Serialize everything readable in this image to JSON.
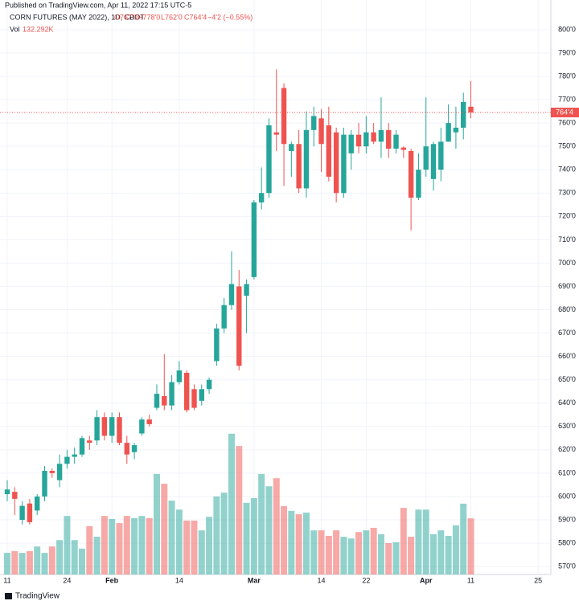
{
  "header": {
    "published": "Published on TradingView.com, Apr 11, 2022 17:15 UTC-5",
    "footer": "TradingView"
  },
  "chart_data": {
    "type": "candlestick",
    "title": "CORN FUTURES (MAY 2022), 1D, CBOT",
    "legend_values": [
      "O767'0",
      "H778'0",
      "L762'0",
      "C764'4",
      "−4'2 (−0.55%)"
    ],
    "volume_title": "Vol",
    "volume_label": "132.292K",
    "up_color": "#26a69a",
    "down_color": "#ef5350",
    "last_price": {
      "value": 764.5,
      "label": "764'4"
    },
    "xlim": [
      -0.97,
      72.7
    ],
    "xticks": [
      {
        "value": 0,
        "label": "11"
      },
      {
        "value": 8,
        "label": "24"
      },
      {
        "value": 14,
        "label": "Feb"
      },
      {
        "value": 23,
        "label": "14"
      },
      {
        "value": 33,
        "label": "Mar"
      },
      {
        "value": 42,
        "label": "14"
      },
      {
        "value": 48,
        "label": "22"
      },
      {
        "value": 56,
        "label": "Apr"
      },
      {
        "value": 62,
        "label": "11"
      },
      {
        "value": 71,
        "label": "25"
      }
    ],
    "ylim": [
      566.6,
      812.7
    ],
    "yticks": [
      {
        "value": 570,
        "label": "570'0"
      },
      {
        "value": 580,
        "label": "580'0"
      },
      {
        "value": 590,
        "label": "590'0"
      },
      {
        "value": 600,
        "label": "600'0"
      },
      {
        "value": 610,
        "label": "610'0"
      },
      {
        "value": 620,
        "label": "620'0"
      },
      {
        "value": 630,
        "label": "630'0"
      },
      {
        "value": 640,
        "label": "640'0"
      },
      {
        "value": 650,
        "label": "650'0"
      },
      {
        "value": 660,
        "label": "660'0"
      },
      {
        "value": 670,
        "label": "670'0"
      },
      {
        "value": 680,
        "label": "680'0"
      },
      {
        "value": 690,
        "label": "690'0"
      },
      {
        "value": 700,
        "label": "700'0"
      },
      {
        "value": 710,
        "label": "710'0"
      },
      {
        "value": 720,
        "label": "720'0"
      },
      {
        "value": 730,
        "label": "730'0"
      },
      {
        "value": 740,
        "label": "740'0"
      },
      {
        "value": 750,
        "label": "750'0"
      },
      {
        "value": 760,
        "label": "760'0"
      },
      {
        "value": 770,
        "label": "770'0"
      },
      {
        "value": 780,
        "label": "780'0"
      },
      {
        "value": 790,
        "label": "790'0"
      },
      {
        "value": 800,
        "label": "800'0"
      }
    ],
    "y2lim": [
      0,
      360000
    ],
    "grid": true,
    "open": [
      601,
      602,
      590,
      597,
      594,
      600,
      611,
      607,
      614,
      617,
      618,
      624,
      624,
      634,
      626,
      634,
      623,
      619,
      627,
      633,
      638,
      643,
      639,
      649,
      653,
      646,
      641,
      646,
      658,
      672,
      682,
      690,
      686,
      694,
      726,
      730,
      756,
      775,
      748,
      751,
      732,
      757,
      762,
      759,
      756,
      730,
      747,
      755,
      750,
      756,
      752,
      757,
      749,
      749.5,
      748,
      728,
      740,
      736,
      740,
      752,
      756,
      758,
      767
    ],
    "high": [
      607,
      604,
      598,
      599,
      601,
      613,
      612,
      618,
      620,
      621,
      626,
      626,
      637,
      636,
      636,
      636,
      626,
      623,
      634,
      635,
      648,
      661,
      652,
      658,
      654,
      648,
      648,
      651,
      674,
      685,
      705,
      697,
      693,
      727,
      741,
      762,
      783,
      777,
      752,
      757,
      765,
      767,
      766,
      767,
      758,
      758,
      757,
      760,
      763,
      760,
      771,
      760,
      757,
      750,
      749,
      747,
      771,
      752,
      758,
      768,
      767,
      773,
      778
    ],
    "low": [
      598,
      592,
      588,
      588,
      592,
      598,
      608,
      604,
      612,
      614,
      617,
      620,
      622,
      624,
      623,
      622,
      614,
      616,
      626,
      630,
      637,
      637,
      637,
      648,
      636,
      637,
      639,
      644,
      656,
      670,
      680,
      654,
      670,
      693,
      723,
      728,
      748,
      733,
      737,
      730,
      728,
      750,
      739,
      735,
      726,
      728,
      740,
      747,
      747,
      751,
      745,
      745,
      747,
      745,
      714,
      727,
      737,
      731,
      735,
      752,
      749,
      753,
      762
    ],
    "close": [
      603,
      599,
      596,
      589,
      600,
      611,
      610,
      614,
      617,
      618,
      625,
      623,
      634,
      626,
      634,
      623,
      618,
      622,
      633,
      631,
      644,
      639,
      649,
      654,
      637,
      638,
      646,
      650,
      672,
      682,
      691,
      656,
      691,
      726,
      730,
      759,
      755,
      751,
      751,
      732,
      757,
      763,
      751,
      737,
      730,
      755,
      755,
      750,
      756,
      752,
      757,
      749,
      755,
      748.5,
      728,
      740,
      750,
      751,
      752,
      760,
      758,
      769,
      764.5
    ],
    "volume": [
      51000,
      55000,
      51000,
      55000,
      66000,
      51000,
      66000,
      81000,
      138000,
      81000,
      61000,
      114000,
      89000,
      138000,
      131000,
      121000,
      138000,
      133000,
      138000,
      133000,
      237000,
      214000,
      174000,
      153000,
      127000,
      127000,
      104000,
      136000,
      184000,
      193000,
      332000,
      303000,
      169000,
      180000,
      237000,
      208000,
      227000,
      161000,
      150000,
      142000,
      146000,
      104000,
      104000,
      91000,
      104000,
      89000,
      85000,
      100000,
      104000,
      110000,
      95000,
      74000,
      76000,
      157000,
      89000,
      153000,
      153000,
      95000,
      104000,
      91000,
      116000,
      167000,
      132292
    ]
  }
}
